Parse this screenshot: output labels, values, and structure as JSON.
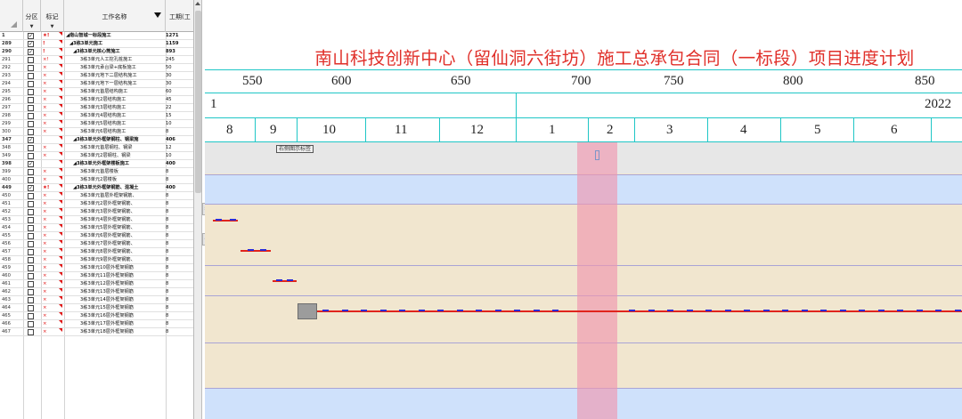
{
  "left_panel": {
    "headers": {
      "partition": "分区",
      "mark": "标记",
      "task_name": "工作名称",
      "duration": "工期(工"
    },
    "rows": [
      {
        "id": "1",
        "checked": true,
        "flag": "★!",
        "name": "◢南山智城一标段施工",
        "duration": "1271",
        "indent": 0,
        "bold": true
      },
      {
        "id": "289",
        "checked": true,
        "flag": "!",
        "name": "◢3栋3单元施工",
        "duration": "1159",
        "indent": 1,
        "bold": true
      },
      {
        "id": "290",
        "checked": true,
        "flag": "!",
        "name": "◢3栋3单元核心筒施工",
        "duration": "893",
        "indent": 2,
        "bold": true
      },
      {
        "id": "291",
        "checked": false,
        "flag": "×!",
        "name": "3栋3单元人工挖孔桩施工",
        "duration": "245",
        "indent": 4,
        "bold": false
      },
      {
        "id": "292",
        "checked": false,
        "flag": "×",
        "name": "3栋3单元承台梁+底板施工",
        "duration": "50",
        "indent": 4,
        "bold": false
      },
      {
        "id": "293",
        "checked": false,
        "flag": "×",
        "name": "3栋3单元地下二层结构施工",
        "duration": "30",
        "indent": 4,
        "bold": false
      },
      {
        "id": "294",
        "checked": false,
        "flag": "×",
        "name": "3栋3单元地下一层结构施工",
        "duration": "30",
        "indent": 4,
        "bold": false
      },
      {
        "id": "295",
        "checked": false,
        "flag": "×",
        "name": "3栋3单元首层结构施工",
        "duration": "60",
        "indent": 4,
        "bold": false
      },
      {
        "id": "296",
        "checked": false,
        "flag": "×",
        "name": "3栋3单元2层结构施工",
        "duration": "45",
        "indent": 4,
        "bold": false
      },
      {
        "id": "297",
        "checked": false,
        "flag": "×",
        "name": "3栋3单元3层结构施工",
        "duration": "22",
        "indent": 4,
        "bold": false
      },
      {
        "id": "298",
        "checked": false,
        "flag": "×",
        "name": "3栋3单元4层结构施工",
        "duration": "15",
        "indent": 4,
        "bold": false
      },
      {
        "id": "299",
        "checked": false,
        "flag": "×",
        "name": "3栋3单元5层结构施工",
        "duration": "10",
        "indent": 4,
        "bold": false
      },
      {
        "id": "300",
        "checked": false,
        "flag": "×",
        "name": "3栋3单元6层结构施工",
        "duration": "8",
        "indent": 4,
        "bold": false
      },
      {
        "id": "347",
        "checked": true,
        "flag": "",
        "name": "◢3栋3单元外框架钢柱、钢梁施",
        "duration": "406",
        "indent": 2,
        "bold": true
      },
      {
        "id": "348",
        "checked": false,
        "flag": "×",
        "name": "3栋3单元首层钢柱、钢梁",
        "duration": "12",
        "indent": 4,
        "bold": false
      },
      {
        "id": "349",
        "checked": false,
        "flag": "×",
        "name": "3栋3单元2层钢柱、钢梁",
        "duration": "10",
        "indent": 4,
        "bold": false
      },
      {
        "id": "398",
        "checked": true,
        "flag": "",
        "name": "◢3栋3单元外框架楼板施工",
        "duration": "400",
        "indent": 2,
        "bold": true
      },
      {
        "id": "399",
        "checked": false,
        "flag": "×",
        "name": "3栋3单元首层楼板",
        "duration": "8",
        "indent": 4,
        "bold": false
      },
      {
        "id": "400",
        "checked": false,
        "flag": "×",
        "name": "3栋3单元2层楼板",
        "duration": "8",
        "indent": 4,
        "bold": false
      },
      {
        "id": "449",
        "checked": true,
        "flag": "★!",
        "name": "◢3栋3单元外框架钢筋、混凝土",
        "duration": "400",
        "indent": 2,
        "bold": true
      },
      {
        "id": "450",
        "checked": false,
        "flag": "×",
        "name": "3栋3单元首层外框架钢筋、",
        "duration": "8",
        "indent": 4,
        "bold": false
      },
      {
        "id": "451",
        "checked": false,
        "flag": "×",
        "name": "3栋3单元2层外框架钢筋、",
        "duration": "8",
        "indent": 4,
        "bold": false
      },
      {
        "id": "452",
        "checked": false,
        "flag": "×",
        "name": "3栋3单元3层外框架钢筋、",
        "duration": "8",
        "indent": 4,
        "bold": false
      },
      {
        "id": "453",
        "checked": false,
        "flag": "×",
        "name": "3栋3单元4层外框架钢筋、",
        "duration": "8",
        "indent": 4,
        "bold": false
      },
      {
        "id": "454",
        "checked": false,
        "flag": "×",
        "name": "3栋3单元5层外框架钢筋、",
        "duration": "8",
        "indent": 4,
        "bold": false
      },
      {
        "id": "455",
        "checked": false,
        "flag": "×",
        "name": "3栋3单元6层外框架钢筋、",
        "duration": "8",
        "indent": 4,
        "bold": false
      },
      {
        "id": "456",
        "checked": false,
        "flag": "×",
        "name": "3栋3单元7层外框架钢筋、",
        "duration": "8",
        "indent": 4,
        "bold": false
      },
      {
        "id": "457",
        "checked": false,
        "flag": "×",
        "name": "3栋3单元8层外框架钢筋、",
        "duration": "8",
        "indent": 4,
        "bold": false
      },
      {
        "id": "458",
        "checked": false,
        "flag": "×",
        "name": "3栋3单元9层外框架钢筋、",
        "duration": "8",
        "indent": 4,
        "bold": false
      },
      {
        "id": "459",
        "checked": false,
        "flag": "×",
        "name": "3栋3单元10层外框架钢筋",
        "duration": "8",
        "indent": 4,
        "bold": false
      },
      {
        "id": "460",
        "checked": false,
        "flag": "×",
        "name": "3栋3单元11层外框架钢筋",
        "duration": "8",
        "indent": 4,
        "bold": false
      },
      {
        "id": "461",
        "checked": false,
        "flag": "×",
        "name": "3栋3单元12层外框架钢筋",
        "duration": "8",
        "indent": 4,
        "bold": false
      },
      {
        "id": "462",
        "checked": false,
        "flag": "×",
        "name": "3栋3单元13层外框架钢筋",
        "duration": "8",
        "indent": 4,
        "bold": false
      },
      {
        "id": "463",
        "checked": false,
        "flag": "×",
        "name": "3栋3单元14层外框架钢筋",
        "duration": "8",
        "indent": 4,
        "bold": false
      },
      {
        "id": "464",
        "checked": false,
        "flag": "×",
        "name": "3栋3单元15层外框架钢筋",
        "duration": "8",
        "indent": 4,
        "bold": false
      },
      {
        "id": "465",
        "checked": false,
        "flag": "×",
        "name": "3栋3单元16层外框架钢筋",
        "duration": "8",
        "indent": 4,
        "bold": false
      },
      {
        "id": "466",
        "checked": false,
        "flag": "×",
        "name": "3栋3单元17层外框架钢筋",
        "duration": "8",
        "indent": 4,
        "bold": false
      },
      {
        "id": "467",
        "checked": false,
        "flag": "×",
        "name": "3栋3单元18层外框架钢筋",
        "duration": "8",
        "indent": 4,
        "bold": false
      }
    ]
  },
  "gantt": {
    "title": "南山科技创新中心（留仙洞六街坊）施工总承包合同（一标段）项目进度计划",
    "day_ticks": [
      "550",
      "600",
      "650",
      "700",
      "750",
      "800",
      "850"
    ],
    "year_labels": [
      "1",
      "2022"
    ],
    "month_labels": [
      "8",
      "9",
      "10",
      "11",
      "12",
      "1",
      "2",
      "3",
      "4",
      "5",
      "6"
    ],
    "bar_label": "右侧图示标签",
    "colors": {
      "band_blue": "#cfe1fb",
      "band_beige": "#f1e6cf",
      "today_pink": "#f096af",
      "bar_red": "#e0241c",
      "milestone_blue": "#2a2ad8"
    }
  }
}
